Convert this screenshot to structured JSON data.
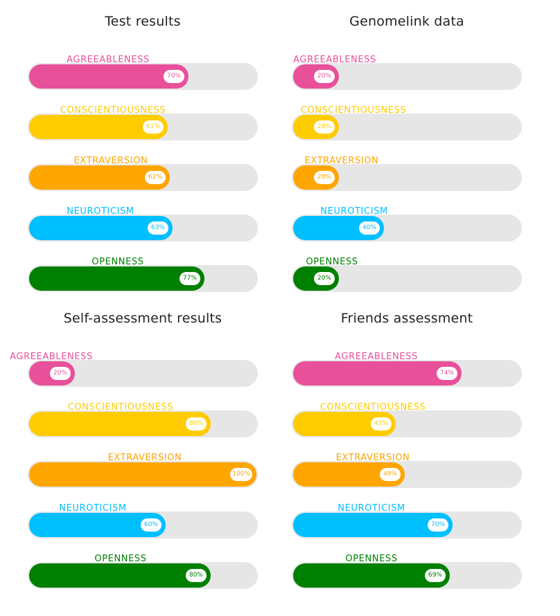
{
  "chart_data": [
    {
      "type": "bar",
      "orientation": "horizontal",
      "title": "Test results",
      "categories": [
        "AGREEABLENESS",
        "CONSCIENTIOUSNESS",
        "EXTRAVERSION",
        "NEUROTICISM",
        "OPENNESS"
      ],
      "values": [
        70,
        61,
        62,
        63,
        77
      ],
      "value_labels": [
        "70%",
        "61%",
        "62%",
        "63%",
        "77%"
      ],
      "xlim": [
        0,
        100
      ]
    },
    {
      "type": "bar",
      "orientation": "horizontal",
      "title": "Genomelink data",
      "categories": [
        "AGREEABLENESS",
        "CONSCIENTIOUSNESS",
        "EXTRAVERSION",
        "NEUROTICISM",
        "OPENNESS"
      ],
      "values": [
        20,
        20,
        20,
        40,
        20
      ],
      "value_labels": [
        "20%",
        "20%",
        "20%",
        "40%",
        "20%"
      ],
      "xlim": [
        0,
        100
      ]
    },
    {
      "type": "bar",
      "orientation": "horizontal",
      "title": "Self-assessment results",
      "categories": [
        "AGREEABLENESS",
        "CONSCIENTIOUSNESS",
        "EXTRAVERSION",
        "NEUROTICISM",
        "OPENNESS"
      ],
      "values": [
        20,
        80,
        100,
        60,
        80
      ],
      "value_labels": [
        "20%",
        "80%",
        "100%",
        "60%",
        "80%"
      ],
      "xlim": [
        0,
        100
      ]
    },
    {
      "type": "bar",
      "orientation": "horizontal",
      "title": "Friends assessment",
      "categories": [
        "AGREEABLENESS",
        "CONSCIENTIOUSNESS",
        "EXTRAVERSION",
        "NEUROTICISM",
        "OPENNESS"
      ],
      "values": [
        74,
        45,
        49,
        70,
        69
      ],
      "value_labels": [
        "74%",
        "45%",
        "49%",
        "70%",
        "69%"
      ],
      "xlim": [
        0,
        100
      ]
    }
  ],
  "colors": {
    "AGREEABLENESS": "#e8509a",
    "CONSCIENTIOUSNESS": "#ffcc00",
    "EXTRAVERSION": "#ffa500",
    "NEUROTICISM": "#00bfff",
    "OPENNESS": "#008000",
    "track": "#e6e6e6",
    "title": "#222222"
  }
}
